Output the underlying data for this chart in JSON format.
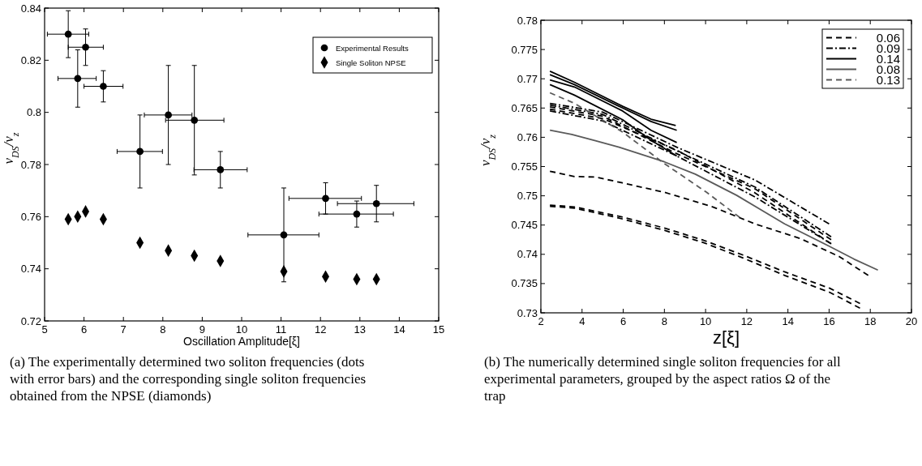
{
  "chart_data": [
    {
      "type": "scatter",
      "xlabel": "Oscillation Amplitude[ξ]",
      "ylabel": "ν$_{DS}$/ν$_{z}$",
      "xlim": [
        5,
        15
      ],
      "ylim": [
        0.72,
        0.84
      ],
      "xticks": [
        5,
        6,
        7,
        8,
        9,
        10,
        11,
        12,
        13,
        14,
        15
      ],
      "yticks": [
        0.72,
        0.74,
        0.76,
        0.78,
        0.8,
        0.82,
        0.84
      ],
      "grid": false,
      "legend": "top right",
      "annotations": [
        "(a) The experimentally determined two soliton frequencies (dots with error bars) and the corresponding single soliton frequencies obtained from the NPSE (diamonds)"
      ],
      "series": [
        {
          "name": "Experimental Results",
          "color": "#000000",
          "marker": "circle",
          "x": [
            5.6,
            6.04,
            5.84,
            6.49,
            7.42,
            8.14,
            8.8,
            9.46,
            11.07,
            12.13,
            12.92,
            13.42
          ],
          "values": [
            0.83,
            0.825,
            0.813,
            0.81,
            0.785,
            0.799,
            0.797,
            0.778,
            0.753,
            0.767,
            0.761,
            0.765
          ],
          "errors": [
            [
              0.821,
              0.839
            ],
            [
              0.818,
              0.832
            ],
            [
              0.802,
              0.824
            ],
            [
              0.804,
              0.816
            ],
            [
              0.771,
              0.799
            ],
            [
              0.78,
              0.818
            ],
            [
              0.776,
              0.818
            ],
            [
              0.771,
              0.785
            ],
            [
              0.735,
              0.771
            ],
            [
              0.761,
              0.773
            ],
            [
              0.756,
              0.766
            ],
            [
              0.758,
              0.772
            ]
          ],
          "xerrors": [
            [
              5.07,
              6.12
            ],
            [
              5.6,
              6.49
            ],
            [
              5.34,
              6.31
            ],
            [
              6.0,
              6.99
            ],
            [
              6.84,
              7.99
            ],
            [
              7.53,
              8.74
            ],
            [
              8.07,
              9.55
            ],
            [
              8.79,
              10.14
            ],
            [
              10.16,
              11.96
            ],
            [
              11.2,
              13.04
            ],
            [
              11.96,
              13.85
            ],
            [
              12.43,
              14.37
            ]
          ]
        },
        {
          "name": "Single Soliton NPSE",
          "color": "#000000",
          "marker": "diamond",
          "x": [
            5.6,
            5.84,
            6.04,
            6.49,
            7.42,
            8.14,
            8.8,
            9.46,
            11.07,
            12.13,
            12.92,
            13.42
          ],
          "values": [
            0.759,
            0.76,
            0.762,
            0.759,
            0.75,
            0.747,
            0.745,
            0.743,
            0.739,
            0.737,
            0.736,
            0.736
          ]
        }
      ]
    },
    {
      "type": "line",
      "xlabel": "z[ξ]",
      "ylabel": "ν$_{DS}$/ν$_{z}$",
      "xlim": [
        2,
        20
      ],
      "ylim": [
        0.73,
        0.78
      ],
      "xticks": [
        2,
        4,
        6,
        8,
        10,
        12,
        14,
        16,
        18,
        20
      ],
      "yticks": [
        0.73,
        0.735,
        0.74,
        0.745,
        0.75,
        0.755,
        0.76,
        0.765,
        0.77,
        0.775,
        0.78
      ],
      "grid": false,
      "legend": "top right",
      "marker": "none",
      "annotations": [
        "(b) The numerically determined single soliton frequencies for all experimental parameters, grouped by the aspect ratios Ω of the trap"
      ],
      "series": [
        {
          "name": "0.06",
          "color": "#000000",
          "line_style": "dashed",
          "x": [
            2.44,
            3.63,
            4.65,
            5.97,
            8.0,
            10.35,
            12.4,
            14.6,
            16.5,
            17.9
          ],
          "values": [
            0.7542,
            0.7533,
            0.7532,
            0.7522,
            0.7506,
            0.7481,
            0.7452,
            0.7427,
            0.7396,
            0.7364
          ]
        },
        {
          "color": "#000000",
          "line_style": "dashed",
          "x": [
            2.44,
            3.63,
            5.8,
            8.0,
            9.9,
            11.8,
            13.84,
            16.03,
            17.5
          ],
          "values": [
            0.7484,
            0.7481,
            0.7465,
            0.7445,
            0.7424,
            0.7399,
            0.737,
            0.7342,
            0.7316
          ]
        },
        {
          "color": "#000000",
          "line_style": "dashed",
          "x": [
            2.44,
            3.63,
            5.8,
            8.0,
            9.9,
            11.8,
            13.84,
            16.03,
            17.5
          ],
          "values": [
            0.7482,
            0.7479,
            0.7462,
            0.7441,
            0.742,
            0.7394,
            0.7364,
            0.7335,
            0.7308
          ]
        },
        {
          "color": "#000000",
          "line_style": "dashed",
          "x": [
            2.44,
            5.0,
            8.6,
            12.4,
            16.1
          ],
          "values": [
            0.7648,
            0.7632,
            0.7578,
            0.7505,
            0.7418
          ]
        },
        {
          "color": "#000000",
          "line_style": "dashed",
          "x": [
            2.44,
            5.0,
            8.6,
            12.4,
            16.1
          ],
          "values": [
            0.7652,
            0.7636,
            0.7572,
            0.7512,
            0.7425
          ]
        },
        {
          "name": "0.09",
          "color": "#000000",
          "line_style": "dashdot",
          "x": [
            2.44,
            5.0,
            8.6,
            12.4,
            16.0
          ],
          "values": [
            0.7658,
            0.7643,
            0.7583,
            0.7527,
            0.7452
          ]
        },
        {
          "color": "#000000",
          "line_style": "dashdot",
          "x": [
            2.44,
            5.0,
            8.6,
            12.4,
            16.1
          ],
          "values": [
            0.7655,
            0.7639,
            0.7577,
            0.7515,
            0.743
          ]
        },
        {
          "color": "#000000",
          "line_style": "dashdot",
          "x": [
            2.44,
            5.0,
            8.6,
            12.4,
            16.1
          ],
          "values": [
            0.7645,
            0.7628,
            0.7568,
            0.7498,
            0.7418
          ]
        },
        {
          "name": "0.14",
          "color": "#000000",
          "line_style": "solid",
          "x": [
            2.44,
            3.63,
            5.97,
            7.35,
            8.55
          ],
          "values": [
            0.7713,
            0.7694,
            0.7653,
            0.7631,
            0.762
          ]
        },
        {
          "color": "#000000",
          "line_style": "solid",
          "x": [
            2.44,
            3.63,
            5.97,
            7.35,
            8.6
          ],
          "values": [
            0.7707,
            0.769,
            0.765,
            0.7627,
            0.7612
          ]
        },
        {
          "color": "#000000",
          "line_style": "solid",
          "x": [
            2.44,
            3.63,
            5.97,
            7.35,
            8.6
          ],
          "values": [
            0.7698,
            0.7686,
            0.7645,
            0.7612,
            0.7591
          ]
        },
        {
          "color": "#000000",
          "line_style": "solid",
          "x": [
            2.44,
            3.63,
            5.97,
            7.35,
            8.6
          ],
          "values": [
            0.769,
            0.7672,
            0.763,
            0.7595,
            0.7568
          ]
        },
        {
          "name": "0.08",
          "color": "#5a5a5a",
          "line_style": "solid",
          "x": [
            2.44,
            3.5,
            4.65,
            5.8,
            8.0,
            9.5,
            11.5,
            13.84,
            16.0,
            17.2,
            18.37
          ],
          "values": [
            0.7612,
            0.7605,
            0.7594,
            0.7583,
            0.7558,
            0.7537,
            0.7501,
            0.7452,
            0.7414,
            0.7392,
            0.7373
          ]
        },
        {
          "name": "0.13",
          "color": "#5a5a5a",
          "line_style": "dashed",
          "x": [
            2.44,
            3.63,
            5.97,
            8.0,
            10.05,
            11.66
          ],
          "values": [
            0.7676,
            0.7658,
            0.7609,
            0.7555,
            0.7506,
            0.7463
          ]
        }
      ]
    }
  ]
}
